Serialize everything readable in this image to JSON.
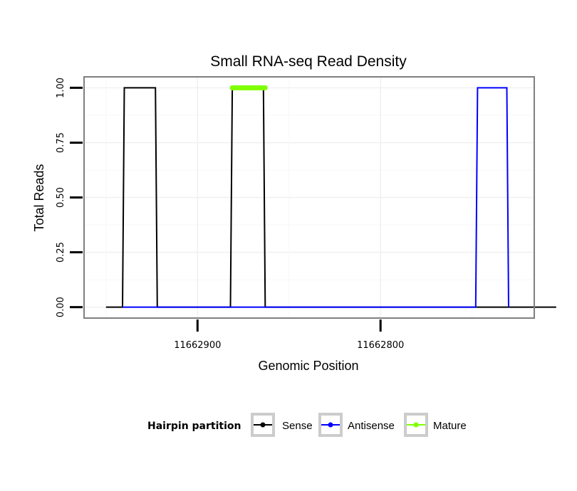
{
  "chart_data": {
    "type": "line",
    "title": "Small RNA-seq Read Density",
    "xlabel": "Genomic Position",
    "ylabel": "Total Reads",
    "x_reversed": true,
    "xlim": [
      11662962,
      11662716
    ],
    "ylim": [
      -0.05,
      1.05
    ],
    "x_ticks": [
      11662900,
      11662800
    ],
    "x_tick_labels": [
      "11662900",
      "11662800"
    ],
    "y_ticks": [
      0,
      0.25,
      0.5,
      0.75,
      1
    ],
    "y_tick_labels": [
      "0.00",
      "0.25",
      "0.50",
      "0.75",
      "1.00"
    ],
    "grid": true,
    "series": [
      {
        "name": "Sense",
        "color": "#000000",
        "x": [
          11662950,
          11662941,
          11662940,
          11662923,
          11662922,
          11662882,
          11662881,
          11662864,
          11662863,
          11662704
        ],
        "y": [
          0,
          0,
          1,
          1,
          0,
          0,
          1,
          1,
          0,
          0
        ]
      },
      {
        "name": "Antisense",
        "color": "#0000ff",
        "x": [
          11662941,
          11662922,
          11662882,
          11662863,
          11662748,
          11662747,
          11662731,
          11662730
        ],
        "y": [
          0,
          0,
          0,
          0,
          0,
          1,
          1,
          0
        ]
      },
      {
        "name": "Mature",
        "color": "#7fff00",
        "x": [
          11662881,
          11662863
        ],
        "y": [
          1,
          1
        ]
      }
    ],
    "legend": {
      "title": "Hairpin partition",
      "position": "bottom",
      "entries": [
        "Sense",
        "Antisense",
        "Mature"
      ]
    }
  }
}
